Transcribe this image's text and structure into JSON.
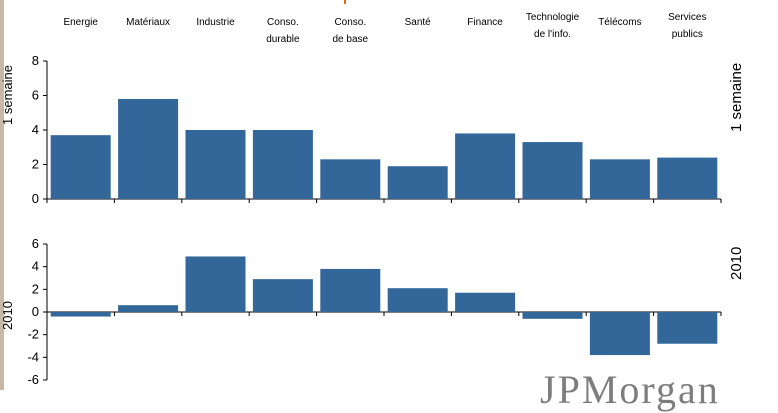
{
  "side_labels": {
    "top": "1 semaine",
    "bottom": "2010"
  },
  "left_labels": {
    "top": "1 semaine",
    "bottom": "2010"
  },
  "logo_text": "JPMorgan",
  "colors": {
    "bar": "#336699",
    "accent": "#e06a1a"
  },
  "chart_data": [
    {
      "type": "bar",
      "categories": [
        "Energie",
        "Matériaux",
        "Industrie",
        "Conso.\ndurable",
        "Conso.\nde base",
        "Santé",
        "Finance",
        "Technologie\nde l'info.",
        "Télécoms",
        "Services\npublics"
      ],
      "values": [
        3.7,
        5.8,
        4.0,
        4.0,
        2.3,
        1.9,
        3.8,
        3.3,
        2.3,
        2.4
      ],
      "ylim": [
        0,
        8
      ],
      "yticks": [
        0,
        2,
        4,
        6,
        8
      ],
      "side_label": "1 semaine"
    },
    {
      "type": "bar",
      "categories": [
        "Energie",
        "Matériaux",
        "Industrie",
        "Conso.\ndurable",
        "Conso.\nde base",
        "Santé",
        "Finance",
        "Technologie\nde l'info.",
        "Télécoms",
        "Services\npublics"
      ],
      "values": [
        -0.4,
        0.6,
        4.9,
        2.9,
        3.8,
        2.1,
        1.7,
        -0.6,
        -3.8,
        -2.8
      ],
      "ylim": [
        -6,
        6
      ],
      "yticks": [
        -6,
        -4,
        -2,
        0,
        2,
        4,
        6
      ],
      "side_label": "2010"
    }
  ]
}
